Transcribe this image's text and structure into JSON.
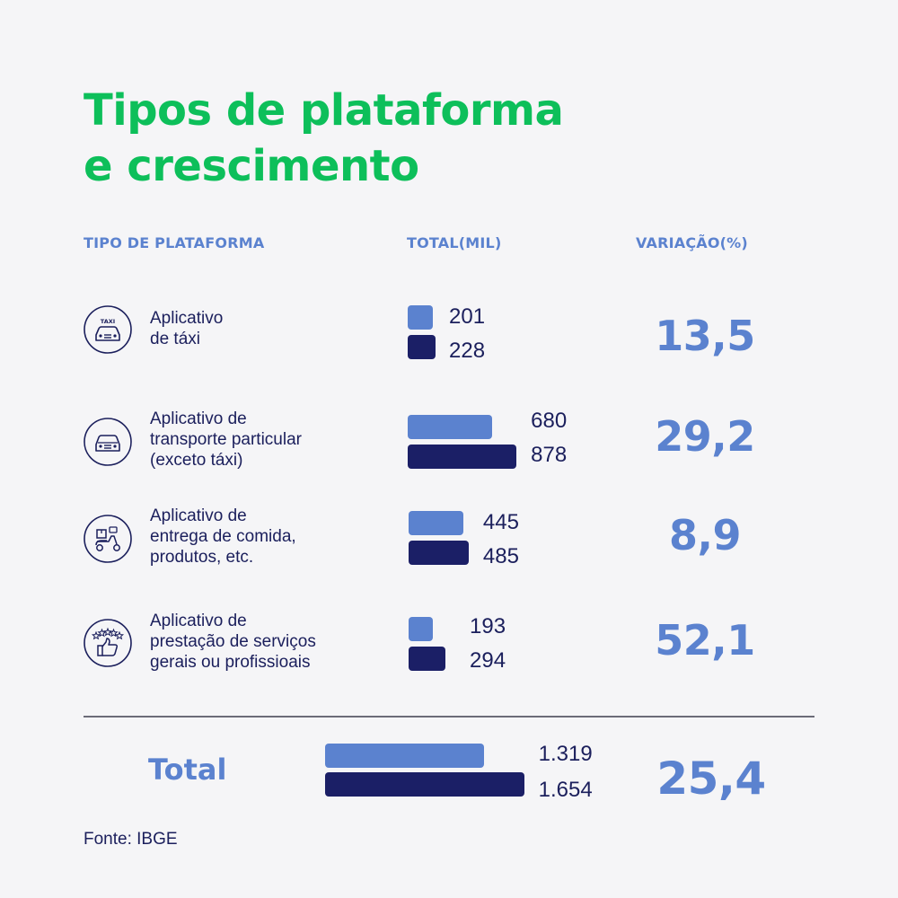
{
  "title_lines": [
    "Tipos de plataforma",
    "e crescimento"
  ],
  "headers": {
    "type": "TIPO DE PLATAFORMA",
    "total": "TOTAL(MIL)",
    "variation": "VARIAÇÃO(%)"
  },
  "rows": [
    {
      "icon": "taxi-icon",
      "icon_text": "TAXI",
      "label_lines": [
        "Aplicativo",
        "de táxi"
      ],
      "values_display": [
        "201",
        "228"
      ],
      "variation": "13,5"
    },
    {
      "icon": "car-icon",
      "label_lines": [
        "Aplicativo de",
        "transporte particular",
        "(exceto táxi)"
      ],
      "values_display": [
        "680",
        "878"
      ],
      "variation": "29,2"
    },
    {
      "icon": "delivery-scooter-icon",
      "label_lines": [
        "Aplicativo de",
        "entrega de comida,",
        "produtos, etc."
      ],
      "values_display": [
        "445",
        "485"
      ],
      "variation": "8,9"
    },
    {
      "icon": "thumbs-up-stars-icon",
      "label_lines": [
        "Aplicativo de",
        "prestação de serviços",
        "gerais ou profissioais"
      ],
      "values_display": [
        "193",
        "294"
      ],
      "variation": "52,1"
    }
  ],
  "total": {
    "label": "Total",
    "values_display": [
      "1.319",
      "1.654"
    ],
    "variation": "25,4"
  },
  "source": "Fonte: IBGE",
  "colors": {
    "title": "#0dbf5a",
    "accent": "#5b82cf",
    "dark": "#1b1f66",
    "text": "#1b1f5c",
    "background": "#f5f5f7"
  },
  "chart_data": {
    "type": "bar",
    "categories": [
      "Aplicativo de táxi",
      "Aplicativo de transporte particular (exceto táxi)",
      "Aplicativo de entrega de comida, produtos, etc.",
      "Aplicativo de prestação de serviços gerais ou profissioais",
      "Total"
    ],
    "series": [
      {
        "values": [
          201,
          680,
          445,
          193,
          1319
        ],
        "color": "#5b82cf"
      },
      {
        "values": [
          228,
          878,
          485,
          294,
          1654
        ],
        "color": "#1b1f66"
      }
    ],
    "variation_pct": [
      13.5,
      29.2,
      8.9,
      52.1,
      25.4
    ],
    "orientation": "horizontal",
    "grid": false
  }
}
